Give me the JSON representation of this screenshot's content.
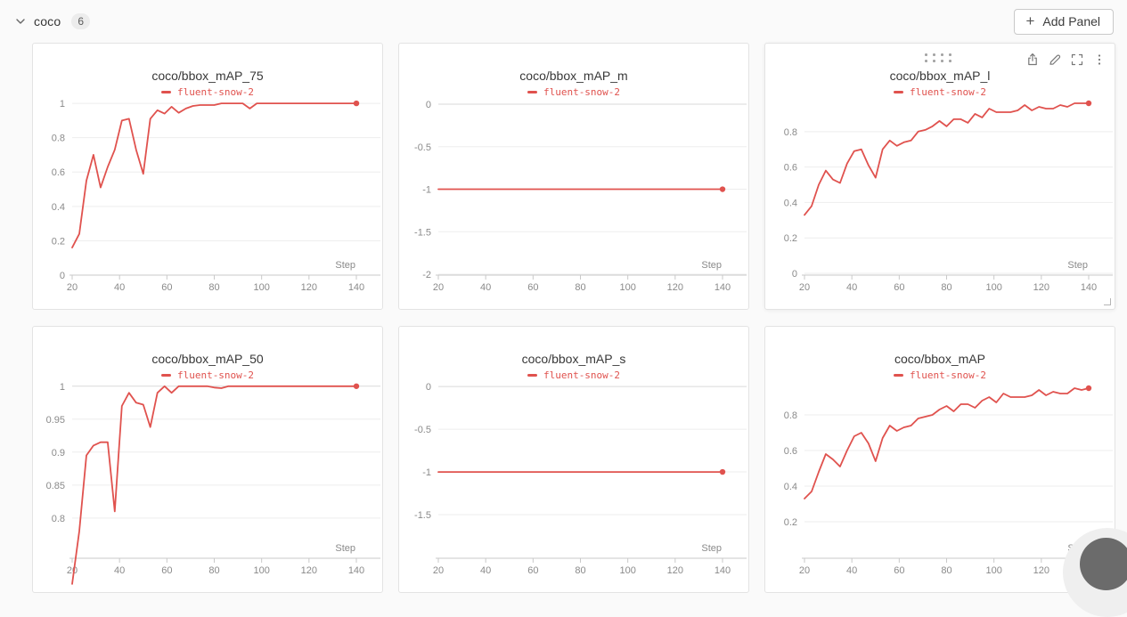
{
  "header": {
    "section_title": "coco",
    "panel_count": "6",
    "add_panel_label": "Add Panel",
    "plus_glyph": "+"
  },
  "run_name": "fluent-snow-2",
  "colors": {
    "accent_red": "#e0524e",
    "page_bg": "#fafafa",
    "panel_border": "#e3e3e3",
    "grid_line": "#ededed",
    "grid_line_emphasis": "#dadada",
    "axis_line": "#c9c9c9",
    "tick_label": "#8a8a8a",
    "title_text": "#383838",
    "icon_gray": "#777777"
  },
  "panel_controls": {
    "drag_handle": "drag-dots-icon",
    "icons": [
      "export-icon",
      "edit-icon",
      "fullscreen-icon",
      "kebab-menu-icon"
    ],
    "resize_handle": "resize-corner"
  },
  "chart_data": [
    {
      "type": "line",
      "title": "coco/bbox_mAP_75",
      "xlabel": "Step",
      "xlim": [
        20,
        140
      ],
      "x_ticks": [
        20,
        40,
        60,
        80,
        100,
        120,
        140
      ],
      "y_ticks": [
        0,
        0.2,
        0.4,
        0.6,
        0.8,
        1
      ],
      "y_tick_labels": [
        "0",
        "0.2",
        "0.4",
        "0.6",
        "0.8",
        "1"
      ],
      "ylim": [
        0,
        0.99
      ],
      "emphasize_tick": null,
      "grid": true,
      "legend_position": "top",
      "end_dot": true,
      "hovered": false,
      "x": [
        20,
        23,
        26,
        29,
        32,
        35,
        38,
        41,
        44,
        47,
        50,
        53,
        56,
        59,
        62,
        65,
        68,
        71,
        74,
        77,
        80,
        83,
        86,
        89,
        92,
        95,
        98,
        101,
        104,
        107,
        110,
        113,
        116,
        119,
        122,
        125,
        128,
        131,
        134,
        137,
        140
      ],
      "series": [
        {
          "name": "fluent-snow-2",
          "y": [
            0.16,
            0.24,
            0.55,
            0.7,
            0.51,
            0.63,
            0.73,
            0.9,
            0.91,
            0.73,
            0.59,
            0.91,
            0.96,
            0.94,
            0.98,
            0.945,
            0.97,
            0.985,
            0.99,
            0.99,
            0.99,
            1.0,
            1.0,
            1.0,
            1.0,
            0.97,
            1.0,
            1.0,
            1.0,
            1.0,
            1.0,
            1.0,
            1.0,
            1.0,
            1.0,
            1.0,
            1.0,
            1.0,
            1.0,
            1.0,
            1.0
          ]
        }
      ]
    },
    {
      "type": "line",
      "title": "coco/bbox_mAP_m",
      "xlabel": "Step",
      "xlim": [
        20,
        140
      ],
      "x_ticks": [
        20,
        40,
        60,
        80,
        100,
        120,
        140
      ],
      "y_ticks": [
        0,
        -0.5,
        -1,
        -1.5,
        -2
      ],
      "y_tick_labels": [
        "0",
        "-0.5",
        "-1",
        "-1.5",
        "-2"
      ],
      "ylim": [
        -2.01,
        -0.01
      ],
      "emphasize_tick": 0,
      "grid": true,
      "legend_position": "top",
      "end_dot": true,
      "hovered": false,
      "x": [
        20,
        23,
        26,
        29,
        32,
        35,
        38,
        41,
        44,
        47,
        50,
        53,
        56,
        59,
        62,
        65,
        68,
        71,
        74,
        77,
        80,
        83,
        86,
        89,
        92,
        95,
        98,
        101,
        104,
        107,
        110,
        113,
        116,
        119,
        122,
        125,
        128,
        131,
        134,
        137,
        140
      ],
      "series": [
        {
          "name": "fluent-snow-2",
          "y": [
            -1,
            -1,
            -1,
            -1,
            -1,
            -1,
            -1,
            -1,
            -1,
            -1,
            -1,
            -1,
            -1,
            -1,
            -1,
            -1,
            -1,
            -1,
            -1,
            -1,
            -1,
            -1,
            -1,
            -1,
            -1,
            -1,
            -1,
            -1,
            -1,
            -1,
            -1,
            -1,
            -1,
            -1,
            -1,
            -1,
            -1,
            -1,
            -1,
            -1,
            -1
          ]
        }
      ]
    },
    {
      "type": "line",
      "title": "coco/bbox_mAP_l",
      "xlabel": "Step",
      "xlim": [
        20,
        140
      ],
      "x_ticks": [
        20,
        40,
        60,
        80,
        100,
        120,
        140
      ],
      "y_ticks": [
        0,
        0.2,
        0.4,
        0.6,
        0.8
      ],
      "y_tick_labels": [
        "0",
        "0.2",
        "0.4",
        "0.6",
        "0.8"
      ],
      "ylim": [
        -0.01,
        0.95
      ],
      "emphasize_tick": null,
      "grid": true,
      "legend_position": "top",
      "end_dot": true,
      "hovered": true,
      "x": [
        20,
        23,
        26,
        29,
        32,
        35,
        38,
        41,
        44,
        47,
        50,
        53,
        56,
        59,
        62,
        65,
        68,
        71,
        74,
        77,
        80,
        83,
        86,
        89,
        92,
        95,
        98,
        101,
        104,
        107,
        110,
        113,
        116,
        119,
        122,
        125,
        128,
        131,
        134,
        137,
        140
      ],
      "series": [
        {
          "name": "fluent-snow-2",
          "y": [
            0.33,
            0.38,
            0.5,
            0.58,
            0.53,
            0.51,
            0.62,
            0.69,
            0.7,
            0.61,
            0.54,
            0.7,
            0.75,
            0.72,
            0.74,
            0.75,
            0.8,
            0.81,
            0.83,
            0.86,
            0.83,
            0.87,
            0.87,
            0.85,
            0.9,
            0.88,
            0.93,
            0.91,
            0.91,
            0.91,
            0.92,
            0.95,
            0.92,
            0.94,
            0.93,
            0.93,
            0.95,
            0.94,
            0.96,
            0.96,
            0.96
          ]
        }
      ]
    },
    {
      "type": "line",
      "title": "coco/bbox_mAP_50",
      "xlabel": "Step",
      "xlim": [
        20,
        140
      ],
      "x_ticks": [
        20,
        40,
        60,
        80,
        100,
        120,
        140
      ],
      "y_ticks": [
        0.8,
        0.85,
        0.9,
        0.95,
        1
      ],
      "y_tick_labels": [
        "0.8",
        "0.85",
        "0.9",
        "0.95",
        "1"
      ],
      "ylim": [
        0.739,
        0.997
      ],
      "emphasize_tick": 1,
      "grid": true,
      "legend_position": "top",
      "end_dot": true,
      "hovered": false,
      "x": [
        20,
        23,
        26,
        29,
        32,
        35,
        38,
        41,
        44,
        47,
        50,
        53,
        56,
        59,
        62,
        65,
        68,
        71,
        74,
        77,
        80,
        83,
        86,
        89,
        92,
        95,
        98,
        101,
        104,
        107,
        110,
        113,
        116,
        119,
        122,
        125,
        128,
        131,
        134,
        137,
        140
      ],
      "series": [
        {
          "name": "fluent-snow-2",
          "y": [
            0.7,
            0.78,
            0.895,
            0.91,
            0.915,
            0.915,
            0.81,
            0.97,
            0.99,
            0.975,
            0.972,
            0.938,
            0.99,
            1.0,
            0.99,
            1.0,
            1.0,
            1.0,
            1.0,
            1.0,
            0.998,
            0.997,
            1.0,
            1.0,
            1.0,
            1.0,
            1.0,
            1.0,
            1.0,
            1.0,
            1.0,
            1.0,
            1.0,
            1.0,
            1.0,
            1.0,
            1.0,
            1.0,
            1.0,
            1.0,
            1.0
          ]
        }
      ]
    },
    {
      "type": "line",
      "title": "coco/bbox_mAP_s",
      "xlabel": "Step",
      "xlim": [
        20,
        140
      ],
      "x_ticks": [
        20,
        40,
        60,
        80,
        100,
        120,
        140
      ],
      "y_ticks": [
        0,
        -0.5,
        -1,
        -1.5
      ],
      "y_tick_labels": [
        "0",
        "-0.5",
        "-1",
        "-1.5"
      ],
      "ylim": [
        -2.01,
        -0.02
      ],
      "emphasize_tick": 0,
      "grid": true,
      "legend_position": "top",
      "end_dot": true,
      "hovered": false,
      "x": [
        20,
        23,
        26,
        29,
        32,
        35,
        38,
        41,
        44,
        47,
        50,
        53,
        56,
        59,
        62,
        65,
        68,
        71,
        74,
        77,
        80,
        83,
        86,
        89,
        92,
        95,
        98,
        101,
        104,
        107,
        110,
        113,
        116,
        119,
        122,
        125,
        128,
        131,
        134,
        137,
        140
      ],
      "series": [
        {
          "name": "fluent-snow-2",
          "y": [
            -1,
            -1,
            -1,
            -1,
            -1,
            -1,
            -1,
            -1,
            -1,
            -1,
            -1,
            -1,
            -1,
            -1,
            -1,
            -1,
            -1,
            -1,
            -1,
            -1,
            -1,
            -1,
            -1,
            -1,
            -1,
            -1,
            -1,
            -1,
            -1,
            -1,
            -1,
            -1,
            -1,
            -1,
            -1,
            -1,
            -1,
            -1,
            -1,
            -1,
            -1
          ]
        }
      ]
    },
    {
      "type": "line",
      "title": "coco/bbox_mAP",
      "xlabel": "Step",
      "xlim": [
        20,
        140
      ],
      "x_ticks": [
        20,
        40,
        60,
        80,
        100,
        120,
        140
      ],
      "y_ticks": [
        0.2,
        0.4,
        0.6,
        0.8
      ],
      "y_tick_labels": [
        "0.2",
        "0.4",
        "0.6",
        "0.8"
      ],
      "ylim": [
        -0.005,
        0.95
      ],
      "emphasize_tick": null,
      "grid": true,
      "legend_position": "top",
      "end_dot": true,
      "hovered": false,
      "x": [
        20,
        23,
        26,
        29,
        32,
        35,
        38,
        41,
        44,
        47,
        50,
        53,
        56,
        59,
        62,
        65,
        68,
        71,
        74,
        77,
        80,
        83,
        86,
        89,
        92,
        95,
        98,
        101,
        104,
        107,
        110,
        113,
        116,
        119,
        122,
        125,
        128,
        131,
        134,
        137,
        140
      ],
      "series": [
        {
          "name": "fluent-snow-2",
          "y": [
            0.33,
            0.37,
            0.48,
            0.58,
            0.55,
            0.51,
            0.6,
            0.68,
            0.7,
            0.64,
            0.54,
            0.67,
            0.74,
            0.71,
            0.73,
            0.74,
            0.78,
            0.79,
            0.8,
            0.83,
            0.85,
            0.82,
            0.86,
            0.86,
            0.84,
            0.88,
            0.9,
            0.87,
            0.92,
            0.9,
            0.9,
            0.9,
            0.91,
            0.94,
            0.91,
            0.93,
            0.92,
            0.92,
            0.95,
            0.94,
            0.95
          ]
        }
      ]
    }
  ]
}
